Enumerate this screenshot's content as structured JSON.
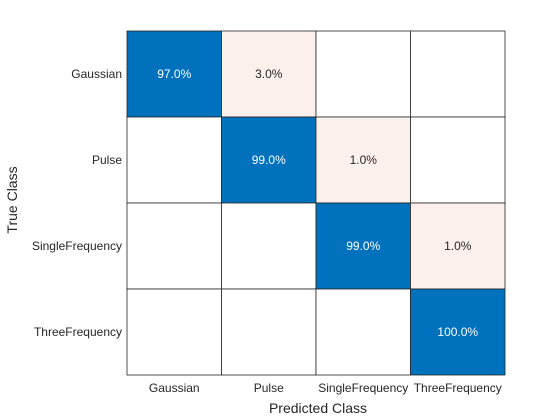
{
  "chart_data": {
    "type": "heatmap",
    "title": "",
    "xlabel": "Predicted Class",
    "ylabel": "True Class",
    "x_categories": [
      "Gaussian",
      "Pulse",
      "SingleFrequency",
      "ThreeFrequency"
    ],
    "y_categories": [
      "Gaussian",
      "Pulse",
      "SingleFrequency",
      "ThreeFrequency"
    ],
    "values": [
      [
        97.0,
        3.0,
        0,
        0
      ],
      [
        0,
        99.0,
        1.0,
        0
      ],
      [
        0,
        0,
        99.0,
        1.0
      ],
      [
        0,
        0,
        0,
        100.0
      ]
    ],
    "cell_labels": [
      [
        "97.0%",
        "3.0%",
        "",
        ""
      ],
      [
        "",
        "99.0%",
        "1.0%",
        ""
      ],
      [
        "",
        "",
        "99.0%",
        "1.0%"
      ],
      [
        "",
        "",
        "",
        "100.0%"
      ]
    ],
    "diagonal_color": "#0072bd",
    "offdiagonal_color": "#fcf0ec",
    "empty_color": "#ffffff",
    "diagonal_text_color": "#ffffff",
    "offdiagonal_text_color": "#262626",
    "grid": true,
    "legend": "none"
  }
}
